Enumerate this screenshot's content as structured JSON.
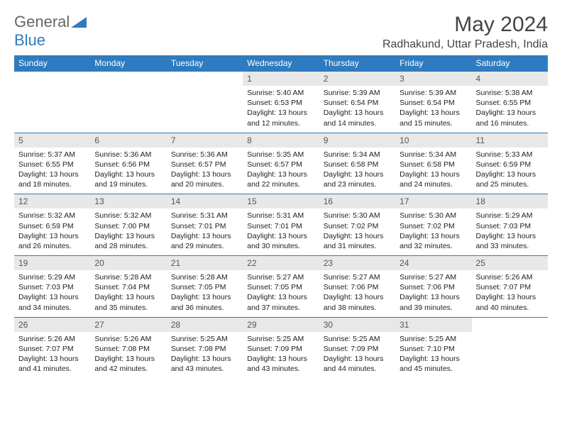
{
  "brand": {
    "part1": "General",
    "part2": "Blue"
  },
  "title": "May 2024",
  "location": "Radhakund, Uttar Pradesh, India",
  "colors": {
    "header_bg": "#2f7bbf",
    "header_fg": "#ffffff",
    "daynum_bg": "#e8e8e8",
    "border": "#2f7bbf"
  },
  "days": [
    "Sunday",
    "Monday",
    "Tuesday",
    "Wednesday",
    "Thursday",
    "Friday",
    "Saturday"
  ],
  "weeks": [
    [
      null,
      null,
      null,
      {
        "n": "1",
        "sr": "5:40 AM",
        "ss": "6:53 PM",
        "dl": "13 hours and 12 minutes."
      },
      {
        "n": "2",
        "sr": "5:39 AM",
        "ss": "6:54 PM",
        "dl": "13 hours and 14 minutes."
      },
      {
        "n": "3",
        "sr": "5:39 AM",
        "ss": "6:54 PM",
        "dl": "13 hours and 15 minutes."
      },
      {
        "n": "4",
        "sr": "5:38 AM",
        "ss": "6:55 PM",
        "dl": "13 hours and 16 minutes."
      }
    ],
    [
      {
        "n": "5",
        "sr": "5:37 AM",
        "ss": "6:55 PM",
        "dl": "13 hours and 18 minutes."
      },
      {
        "n": "6",
        "sr": "5:36 AM",
        "ss": "6:56 PM",
        "dl": "13 hours and 19 minutes."
      },
      {
        "n": "7",
        "sr": "5:36 AM",
        "ss": "6:57 PM",
        "dl": "13 hours and 20 minutes."
      },
      {
        "n": "8",
        "sr": "5:35 AM",
        "ss": "6:57 PM",
        "dl": "13 hours and 22 minutes."
      },
      {
        "n": "9",
        "sr": "5:34 AM",
        "ss": "6:58 PM",
        "dl": "13 hours and 23 minutes."
      },
      {
        "n": "10",
        "sr": "5:34 AM",
        "ss": "6:58 PM",
        "dl": "13 hours and 24 minutes."
      },
      {
        "n": "11",
        "sr": "5:33 AM",
        "ss": "6:59 PM",
        "dl": "13 hours and 25 minutes."
      }
    ],
    [
      {
        "n": "12",
        "sr": "5:32 AM",
        "ss": "6:59 PM",
        "dl": "13 hours and 26 minutes."
      },
      {
        "n": "13",
        "sr": "5:32 AM",
        "ss": "7:00 PM",
        "dl": "13 hours and 28 minutes."
      },
      {
        "n": "14",
        "sr": "5:31 AM",
        "ss": "7:01 PM",
        "dl": "13 hours and 29 minutes."
      },
      {
        "n": "15",
        "sr": "5:31 AM",
        "ss": "7:01 PM",
        "dl": "13 hours and 30 minutes."
      },
      {
        "n": "16",
        "sr": "5:30 AM",
        "ss": "7:02 PM",
        "dl": "13 hours and 31 minutes."
      },
      {
        "n": "17",
        "sr": "5:30 AM",
        "ss": "7:02 PM",
        "dl": "13 hours and 32 minutes."
      },
      {
        "n": "18",
        "sr": "5:29 AM",
        "ss": "7:03 PM",
        "dl": "13 hours and 33 minutes."
      }
    ],
    [
      {
        "n": "19",
        "sr": "5:29 AM",
        "ss": "7:03 PM",
        "dl": "13 hours and 34 minutes."
      },
      {
        "n": "20",
        "sr": "5:28 AM",
        "ss": "7:04 PM",
        "dl": "13 hours and 35 minutes."
      },
      {
        "n": "21",
        "sr": "5:28 AM",
        "ss": "7:05 PM",
        "dl": "13 hours and 36 minutes."
      },
      {
        "n": "22",
        "sr": "5:27 AM",
        "ss": "7:05 PM",
        "dl": "13 hours and 37 minutes."
      },
      {
        "n": "23",
        "sr": "5:27 AM",
        "ss": "7:06 PM",
        "dl": "13 hours and 38 minutes."
      },
      {
        "n": "24",
        "sr": "5:27 AM",
        "ss": "7:06 PM",
        "dl": "13 hours and 39 minutes."
      },
      {
        "n": "25",
        "sr": "5:26 AM",
        "ss": "7:07 PM",
        "dl": "13 hours and 40 minutes."
      }
    ],
    [
      {
        "n": "26",
        "sr": "5:26 AM",
        "ss": "7:07 PM",
        "dl": "13 hours and 41 minutes."
      },
      {
        "n": "27",
        "sr": "5:26 AM",
        "ss": "7:08 PM",
        "dl": "13 hours and 42 minutes."
      },
      {
        "n": "28",
        "sr": "5:25 AM",
        "ss": "7:08 PM",
        "dl": "13 hours and 43 minutes."
      },
      {
        "n": "29",
        "sr": "5:25 AM",
        "ss": "7:09 PM",
        "dl": "13 hours and 43 minutes."
      },
      {
        "n": "30",
        "sr": "5:25 AM",
        "ss": "7:09 PM",
        "dl": "13 hours and 44 minutes."
      },
      {
        "n": "31",
        "sr": "5:25 AM",
        "ss": "7:10 PM",
        "dl": "13 hours and 45 minutes."
      },
      null
    ]
  ],
  "labels": {
    "sunrise": "Sunrise:",
    "sunset": "Sunset:",
    "daylight": "Daylight:"
  }
}
